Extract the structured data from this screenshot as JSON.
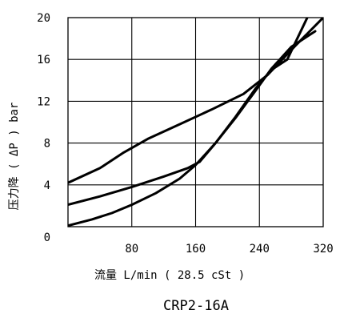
{
  "chart_data": {
    "type": "line",
    "title": "",
    "xlabel": "流量 L/min ( 28.5 cSt )",
    "ylabel": "压力降 ( ΔP ) bar",
    "xlim": [
      0,
      320
    ],
    "ylim": [
      0,
      20
    ],
    "x_ticks": [
      "0",
      "80",
      "160",
      "240",
      "320"
    ],
    "y_ticks": [
      "0",
      "4",
      "8",
      "12",
      "16",
      "20"
    ],
    "grid": true,
    "caption": "CRP2-16A",
    "series": [
      {
        "points": [
          [
            0,
            4.2
          ],
          [
            40,
            5.6
          ],
          [
            70,
            7.1
          ],
          [
            100,
            8.4
          ],
          [
            140,
            9.8
          ],
          [
            180,
            11.2
          ],
          [
            220,
            12.7
          ],
          [
            250,
            14.5
          ],
          [
            285,
            17.3
          ],
          [
            320,
            20
          ]
        ]
      },
      {
        "points": [
          [
            0,
            2.1
          ],
          [
            40,
            2.9
          ],
          [
            80,
            3.8
          ],
          [
            120,
            4.8
          ],
          [
            150,
            5.6
          ],
          [
            165,
            6.2
          ],
          [
            185,
            8.0
          ],
          [
            210,
            10.4
          ],
          [
            235,
            13.0
          ],
          [
            255,
            15.1
          ],
          [
            280,
            17.2
          ],
          [
            310,
            18.7
          ]
        ]
      },
      {
        "points": [
          [
            0,
            0.1
          ],
          [
            30,
            0.7
          ],
          [
            55,
            1.3
          ],
          [
            80,
            2.1
          ],
          [
            110,
            3.2
          ],
          [
            140,
            4.6
          ],
          [
            160,
            5.9
          ],
          [
            185,
            8.0
          ],
          [
            210,
            10.5
          ],
          [
            235,
            13.2
          ],
          [
            255,
            15.0
          ],
          [
            275,
            16.0
          ],
          [
            300,
            20.0
          ]
        ]
      }
    ]
  }
}
